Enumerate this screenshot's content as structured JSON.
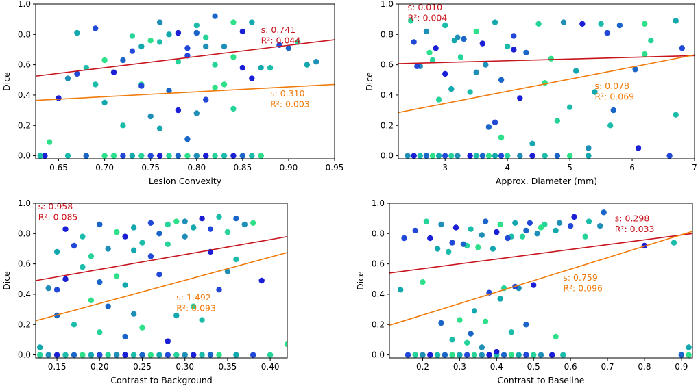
{
  "colors": {
    "red_fit": "#c8141c",
    "orange_fit": "#f07a0a",
    "point_palette": [
      "#1a1fd6",
      "#2248d8",
      "#1a66c8",
      "#1f8fb8",
      "#13a8ad",
      "#1cbcab",
      "#26d39b",
      "#2ee08a"
    ]
  },
  "chart_data": [
    {
      "type": "scatter",
      "title": "",
      "xlabel": "Lesion Convexity",
      "ylabel": "Dice",
      "xlim": [
        0.625,
        0.95
      ],
      "ylim": [
        -0.02,
        1.0
      ],
      "xticks": [
        0.65,
        0.7,
        0.75,
        0.8,
        0.85,
        0.9,
        0.95
      ],
      "xtick_labels": [
        "0.65",
        "0.70",
        "0.75",
        "0.80",
        "0.85",
        "0.90",
        "0.95"
      ],
      "yticks": [
        0.0,
        0.2,
        0.4,
        0.6,
        0.8,
        1.0
      ],
      "ytick_labels": [
        "0.0",
        "0.2",
        "0.4",
        "0.6",
        "0.8",
        "1.0"
      ],
      "points": {
        "x": [
          0.635,
          0.66,
          0.68,
          0.7,
          0.71,
          0.72,
          0.74,
          0.75,
          0.76,
          0.77,
          0.78,
          0.79,
          0.8,
          0.81,
          0.82,
          0.83,
          0.84,
          0.86,
          0.87,
          0.64,
          0.67,
          0.69,
          0.73,
          0.76,
          0.78,
          0.8,
          0.82,
          0.84,
          0.86,
          0.89,
          0.91,
          0.93,
          0.65,
          0.68,
          0.72,
          0.75,
          0.77,
          0.79,
          0.81,
          0.83,
          0.85,
          0.88,
          0.9,
          0.7,
          0.74,
          0.79,
          0.82,
          0.66,
          0.71,
          0.76,
          0.8,
          0.84,
          0.87,
          0.73,
          0.78,
          0.81,
          0.85,
          0.69,
          0.77,
          0.83,
          0.92,
          0.67,
          0.74,
          0.8,
          0.86,
          0.72,
          0.79,
          0.82,
          0.76,
          0.81,
          0.84,
          0.75,
          0.78,
          0.63,
          0.68,
          0.71,
          0.73,
          0.75,
          0.77,
          0.8,
          0.81,
          0.83,
          0.85,
          0.87,
          0.7,
          0.74
        ],
        "y": [
          0.0,
          0.0,
          0.0,
          0.0,
          0.0,
          0.0,
          0.0,
          0.0,
          0.0,
          0.0,
          0.0,
          0.0,
          0.0,
          0.0,
          0.0,
          0.0,
          0.0,
          0.0,
          0.0,
          0.09,
          0.81,
          0.84,
          0.79,
          0.88,
          0.81,
          0.86,
          0.92,
          0.88,
          0.88,
          0.73,
          0.75,
          0.62,
          0.38,
          0.58,
          0.63,
          0.76,
          0.8,
          0.71,
          0.78,
          0.72,
          0.82,
          0.58,
          0.71,
          0.63,
          0.72,
          0.66,
          0.6,
          0.51,
          0.55,
          0.75,
          0.81,
          0.65,
          0.58,
          0.69,
          0.62,
          0.72,
          0.58,
          0.47,
          0.43,
          0.47,
          0.6,
          0.54,
          0.47,
          0.28,
          0.51,
          0.2,
          0.11,
          0.45,
          0.18,
          0.37,
          0.31,
          0.26,
          0.3,
          0.0,
          0.0,
          0.0,
          0.0,
          0.0,
          0.0,
          0.0,
          0.0,
          0.0,
          0.0,
          0.0,
          0.35,
          0.46
        ]
      },
      "fit_red": {
        "x": [
          0.625,
          0.95
        ],
        "y": [
          0.525,
          0.765
        ],
        "label_s": "s: 0.741",
        "label_r2": "R²: 0.044",
        "label_x": 0.87,
        "label_y_s": 0.81,
        "label_y_r2": 0.74
      },
      "fit_orange": {
        "x": [
          0.625,
          0.95
        ],
        "y": [
          0.365,
          0.47
        ],
        "label_s": "s: 0.310",
        "label_r2": "R²: 0.003",
        "label_x": 0.88,
        "label_y_s": 0.39,
        "label_y_r2": 0.32
      }
    },
    {
      "type": "scatter",
      "title": "",
      "xlabel": "Approx. Diameter (mm)",
      "ylabel": "Dice",
      "xlim": [
        2.25,
        7.0
      ],
      "ylim": [
        -0.02,
        1.0
      ],
      "xticks": [
        3,
        4,
        5,
        6,
        7
      ],
      "xtick_labels": [
        "3",
        "4",
        "5",
        "6",
        "7"
      ],
      "yticks": [
        0.0,
        0.2,
        0.4,
        0.6,
        0.8,
        1.0
      ],
      "ytick_labels": [
        "0.0",
        "0.2",
        "0.4",
        "0.6",
        "0.8",
        "1.0"
      ],
      "points": {
        "x": [
          2.4,
          2.5,
          2.6,
          2.7,
          2.8,
          2.9,
          3.0,
          3.1,
          3.2,
          3.4,
          3.5,
          3.6,
          3.7,
          3.8,
          3.9,
          4.0,
          4.2,
          4.4,
          4.6,
          4.8,
          5.0,
          5.3,
          6.6,
          2.45,
          2.7,
          2.85,
          3.0,
          3.3,
          3.5,
          3.8,
          4.1,
          4.5,
          4.9,
          5.2,
          5.5,
          5.8,
          6.2,
          6.7,
          2.5,
          2.8,
          3.2,
          3.6,
          4.0,
          4.3,
          4.7,
          5.1,
          5.6,
          6.3,
          2.6,
          3.0,
          3.4,
          3.9,
          4.6,
          5.4,
          6.8,
          2.9,
          3.5,
          4.2,
          5.0,
          5.7,
          6.2,
          3.1,
          3.8,
          4.8,
          5.3,
          6.1,
          6.7,
          3.7,
          3.9,
          4.4,
          2.55,
          3.25,
          3.65,
          4.1,
          5.65,
          6.05,
          2.75,
          3.15
        ],
        "y": [
          0.0,
          0.0,
          0.0,
          0.0,
          0.0,
          0.0,
          0.0,
          0.0,
          0.0,
          0.0,
          0.0,
          0.0,
          0.0,
          0.0,
          0.0,
          0.0,
          0.0,
          0.0,
          0.0,
          0.0,
          0.0,
          0.0,
          0.0,
          0.89,
          0.82,
          0.71,
          0.86,
          0.77,
          0.82,
          0.88,
          0.79,
          0.87,
          0.88,
          0.87,
          0.87,
          0.86,
          0.87,
          0.89,
          0.75,
          0.63,
          0.78,
          0.74,
          0.72,
          0.68,
          0.64,
          0.56,
          0.81,
          0.76,
          0.59,
          0.54,
          0.42,
          0.5,
          0.48,
          0.42,
          0.71,
          0.37,
          0.55,
          0.38,
          0.32,
          0.3,
          0.67,
          0.44,
          0.22,
          0.23,
          0.05,
          0.05,
          0.27,
          0.19,
          0.12,
          0.08,
          0.59,
          0.65,
          0.6,
          0.7,
          0.2,
          0.57,
          0.68,
          0.76
        ]
      },
      "fit_red": {
        "x": [
          2.25,
          7.0
        ],
        "y": [
          0.607,
          0.66
        ],
        "label_s": "s: 0.010",
        "label_r2": "R²: 0.004",
        "label_x": 2.4,
        "label_y_s": 0.96,
        "label_y_r2": 0.89
      },
      "fit_orange": {
        "x": [
          2.25,
          7.0
        ],
        "y": [
          0.285,
          0.665
        ],
        "label_s": "s: 0.078",
        "label_r2": "R²: 0.069",
        "label_x": 5.4,
        "label_y_s": 0.44,
        "label_y_r2": 0.37
      }
    },
    {
      "type": "scatter",
      "title": "",
      "xlabel": "Contrast to Background",
      "ylabel": "Dice",
      "xlim": [
        0.125,
        0.42
      ],
      "ylim": [
        -0.02,
        1.0
      ],
      "xticks": [
        0.15,
        0.2,
        0.25,
        0.3,
        0.35,
        0.4
      ],
      "xtick_labels": [
        "0.15",
        "0.20",
        "0.25",
        "0.30",
        "0.35",
        "0.40"
      ],
      "yticks": [
        0.0,
        0.2,
        0.4,
        0.6,
        0.8,
        1.0
      ],
      "ytick_labels": [
        "0.0",
        "0.2",
        "0.4",
        "0.6",
        "0.8",
        "1.0"
      ],
      "points": {
        "x": [
          0.13,
          0.14,
          0.15,
          0.16,
          0.17,
          0.18,
          0.19,
          0.2,
          0.21,
          0.22,
          0.23,
          0.24,
          0.25,
          0.26,
          0.27,
          0.28,
          0.29,
          0.3,
          0.31,
          0.32,
          0.33,
          0.34,
          0.36,
          0.38,
          0.4,
          0.14,
          0.16,
          0.18,
          0.2,
          0.22,
          0.24,
          0.26,
          0.28,
          0.3,
          0.32,
          0.34,
          0.36,
          0.38,
          0.15,
          0.17,
          0.19,
          0.21,
          0.23,
          0.25,
          0.27,
          0.29,
          0.31,
          0.33,
          0.35,
          0.37,
          0.16,
          0.18,
          0.2,
          0.22,
          0.24,
          0.26,
          0.28,
          0.3,
          0.33,
          0.36,
          0.15,
          0.19,
          0.23,
          0.27,
          0.31,
          0.35,
          0.39,
          0.17,
          0.21,
          0.25,
          0.29,
          0.34,
          0.2,
          0.24,
          0.28,
          0.32,
          0.23,
          0.42,
          0.13,
          0.15
        ],
        "y": [
          0.0,
          0.0,
          0.0,
          0.0,
          0.0,
          0.0,
          0.0,
          0.0,
          0.0,
          0.0,
          0.0,
          0.0,
          0.0,
          0.0,
          0.0,
          0.0,
          0.0,
          0.0,
          0.0,
          0.0,
          0.0,
          0.0,
          0.0,
          0.0,
          0.0,
          0.44,
          0.83,
          0.78,
          0.86,
          0.81,
          0.84,
          0.87,
          0.86,
          0.88,
          0.9,
          0.91,
          0.9,
          0.87,
          0.68,
          0.72,
          0.65,
          0.7,
          0.78,
          0.74,
          0.8,
          0.88,
          0.84,
          0.83,
          0.81,
          0.86,
          0.5,
          0.58,
          0.48,
          0.52,
          0.69,
          0.65,
          0.73,
          0.78,
          0.68,
          0.63,
          0.26,
          0.36,
          0.46,
          0.53,
          0.32,
          0.55,
          0.49,
          0.2,
          0.32,
          0.18,
          0.26,
          0.43,
          0.15,
          0.27,
          0.09,
          0.23,
          0.12,
          0.07,
          0.05,
          0.43
        ]
      },
      "fit_red": {
        "x": [
          0.125,
          0.42
        ],
        "y": [
          0.49,
          0.78
        ],
        "label_s": "s: 0.958",
        "label_r2": "R²: 0.085",
        "label_x": 0.128,
        "label_y_s": 0.96,
        "label_y_r2": 0.89
      },
      "fit_orange": {
        "x": [
          0.125,
          0.42
        ],
        "y": [
          0.225,
          0.675
        ],
        "label_s": "s: 1.492",
        "label_r2": "R²: 0.093",
        "label_x": 0.29,
        "label_y_s": 0.36,
        "label_y_r2": 0.29
      }
    },
    {
      "type": "scatter",
      "title": "",
      "xlabel": "Contrast to Baseline",
      "ylabel": "Dice",
      "xlim": [
        0.11,
        0.93
      ],
      "ylim": [
        -0.02,
        1.0
      ],
      "xticks": [
        0.2,
        0.3,
        0.4,
        0.5,
        0.6,
        0.7,
        0.8,
        0.9
      ],
      "xtick_labels": [
        "0.2",
        "0.3",
        "0.4",
        "0.5",
        "0.6",
        "0.7",
        "0.8",
        "0.9"
      ],
      "yticks": [
        0.0,
        0.2,
        0.4,
        0.6,
        0.8,
        1.0
      ],
      "ytick_labels": [
        "0.0",
        "0.2",
        "0.4",
        "0.6",
        "0.8",
        "1.0"
      ],
      "points": {
        "x": [
          0.16,
          0.18,
          0.2,
          0.22,
          0.24,
          0.26,
          0.28,
          0.3,
          0.32,
          0.34,
          0.36,
          0.38,
          0.4,
          0.42,
          0.44,
          0.46,
          0.48,
          0.5,
          0.52,
          0.55,
          0.58,
          0.9,
          0.92,
          0.14,
          0.18,
          0.21,
          0.25,
          0.29,
          0.33,
          0.37,
          0.41,
          0.45,
          0.49,
          0.53,
          0.57,
          0.61,
          0.65,
          0.69,
          0.2,
          0.24,
          0.28,
          0.32,
          0.36,
          0.4,
          0.44,
          0.48,
          0.52,
          0.56,
          0.6,
          0.64,
          0.68,
          0.22,
          0.27,
          0.31,
          0.35,
          0.39,
          0.43,
          0.47,
          0.51,
          0.8,
          0.88,
          0.25,
          0.3,
          0.34,
          0.38,
          0.42,
          0.46,
          0.5,
          0.28,
          0.33,
          0.37,
          0.41,
          0.45,
          0.32,
          0.36,
          0.4,
          0.44,
          0.48,
          0.56,
          0.92,
          0.15
        ],
        "y": [
          0.0,
          0.0,
          0.0,
          0.0,
          0.0,
          0.0,
          0.0,
          0.0,
          0.0,
          0.0,
          0.0,
          0.0,
          0.0,
          0.0,
          0.0,
          0.0,
          0.0,
          0.0,
          0.0,
          0.0,
          0.0,
          0.0,
          0.0,
          0.43,
          0.82,
          0.88,
          0.86,
          0.84,
          0.83,
          0.88,
          0.86,
          0.87,
          0.87,
          0.86,
          0.87,
          0.91,
          0.88,
          0.94,
          0.48,
          0.7,
          0.74,
          0.72,
          0.79,
          0.81,
          0.78,
          0.82,
          0.84,
          0.82,
          0.85,
          0.78,
          0.85,
          0.77,
          0.68,
          0.73,
          0.71,
          0.7,
          0.77,
          0.78,
          0.8,
          0.72,
          0.74,
          0.21,
          0.23,
          0.29,
          0.41,
          0.44,
          0.44,
          0.46,
          0.1,
          0.14,
          0.22,
          0.37,
          0.45,
          0.08,
          0.05,
          0.02,
          0.15,
          0.2,
          0.12,
          0.05,
          0.77
        ]
      },
      "fit_red": {
        "x": [
          0.11,
          0.93
        ],
        "y": [
          0.54,
          0.8
        ],
        "label_s": "s: 0.298",
        "label_r2": "R²: 0.033",
        "label_x": 0.72,
        "label_y_s": 0.88,
        "label_y_r2": 0.81
      },
      "fit_orange": {
        "x": [
          0.11,
          0.93
        ],
        "y": [
          0.195,
          0.815
        ],
        "label_s": "s: 0.759",
        "label_r2": "R²: 0.096",
        "label_x": 0.58,
        "label_y_s": 0.49,
        "label_y_r2": 0.42
      }
    }
  ]
}
